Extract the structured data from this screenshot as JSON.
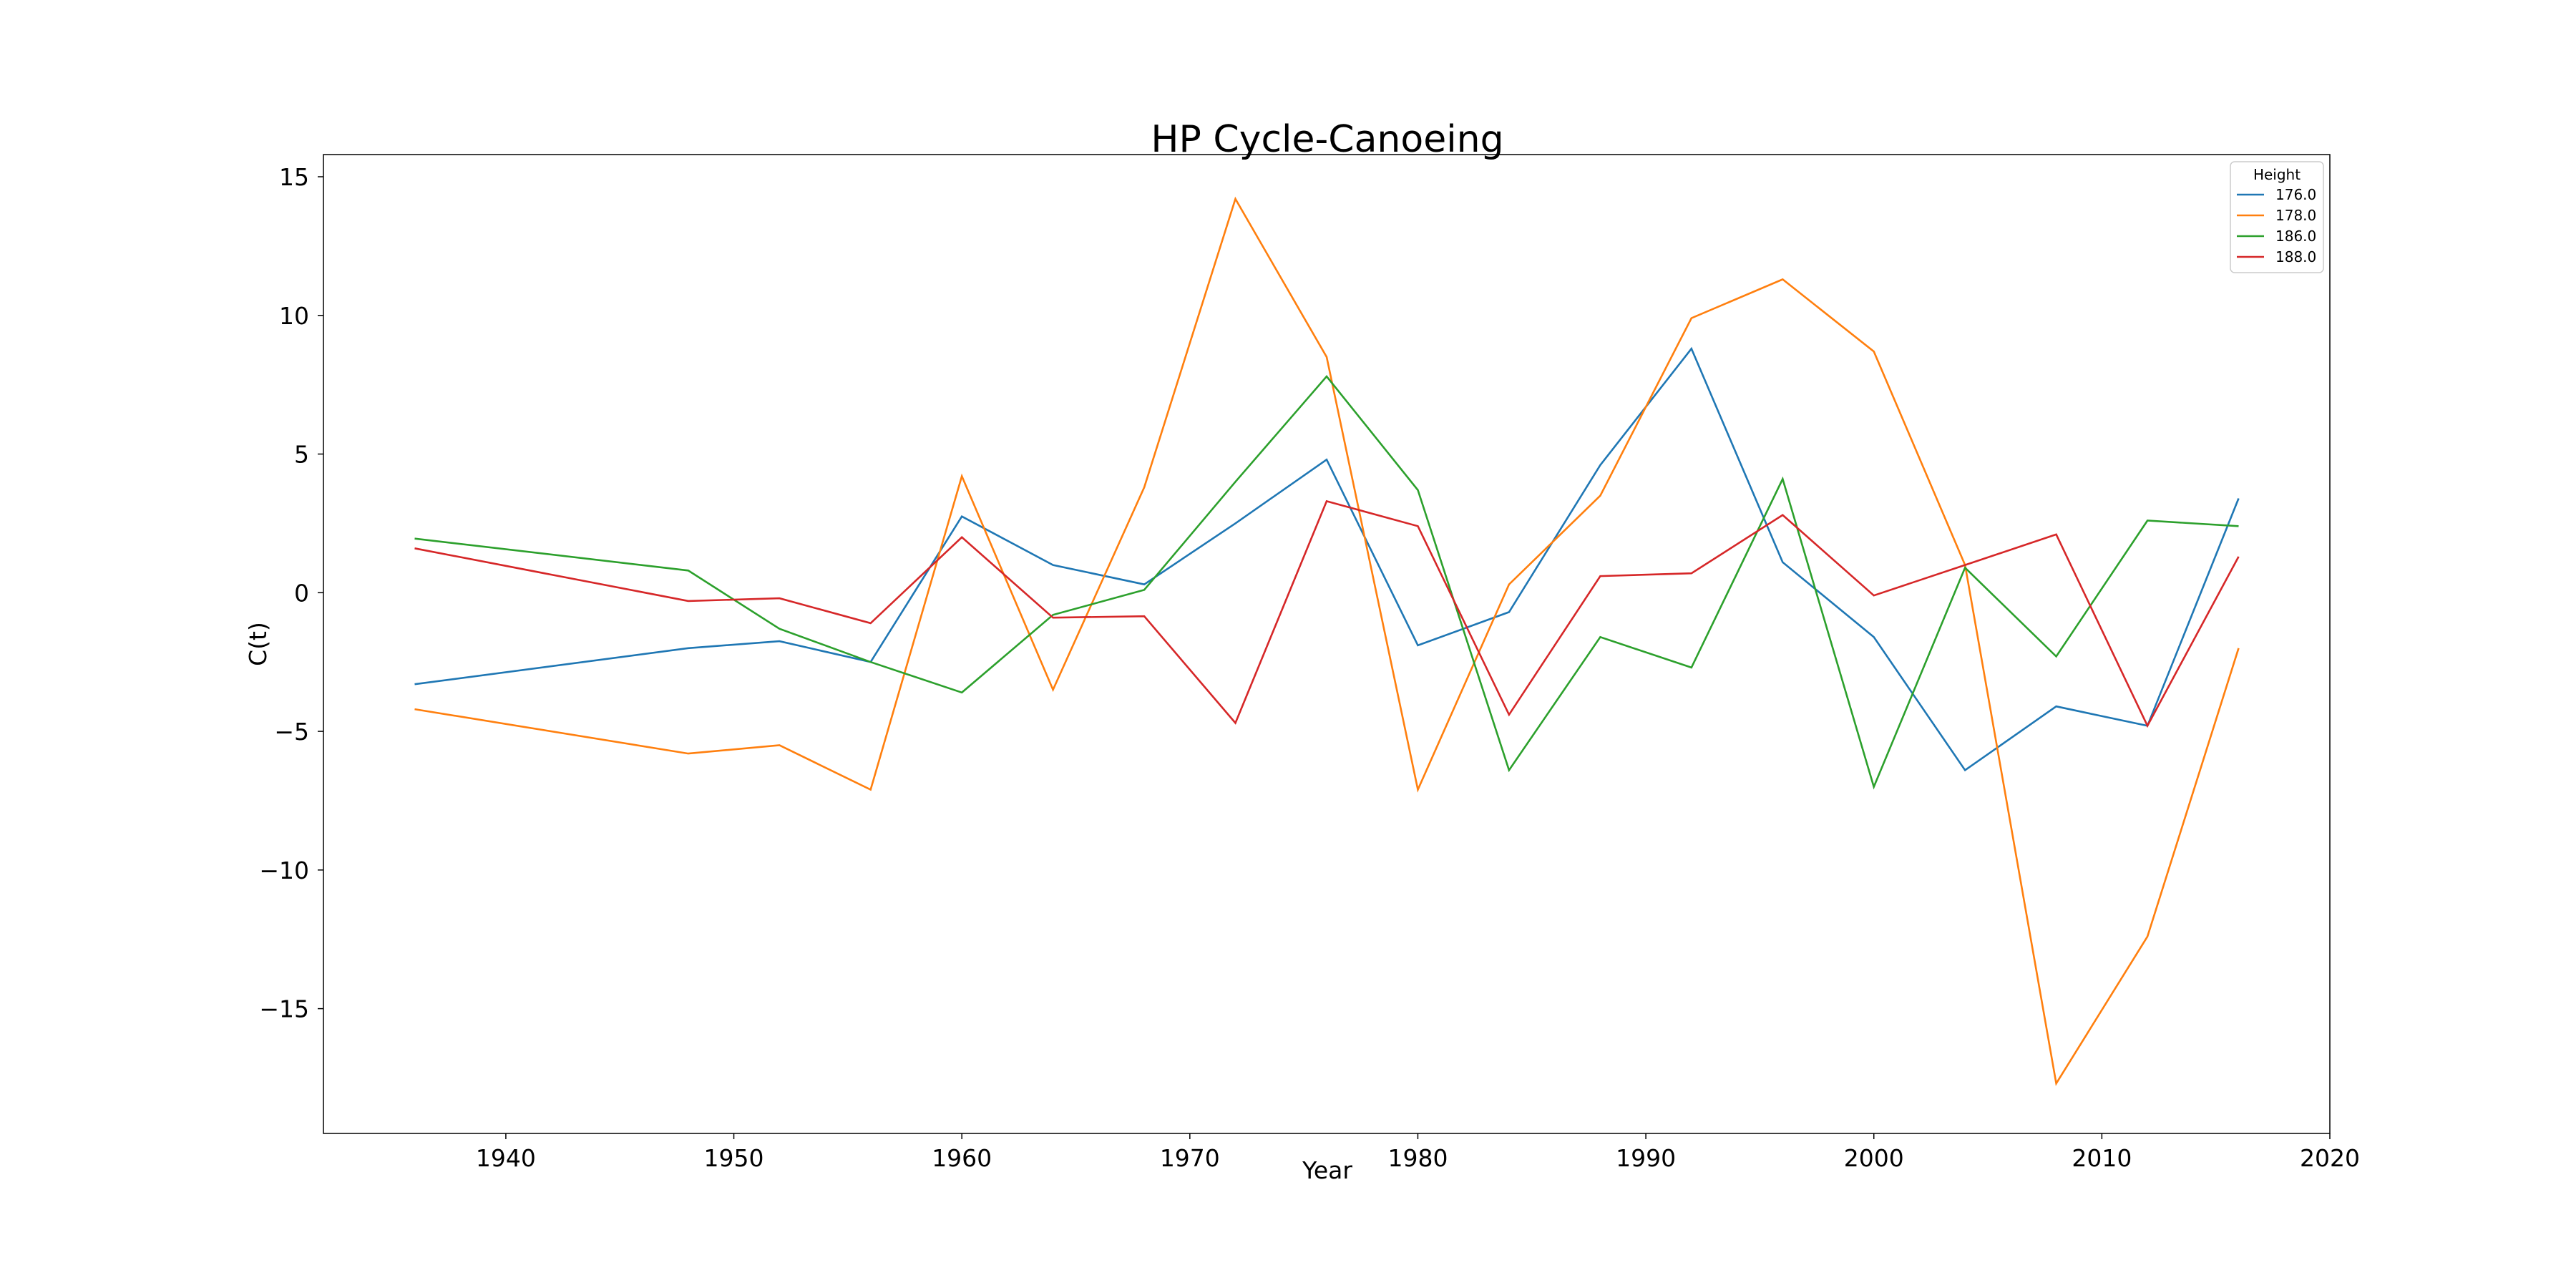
{
  "chart_data": {
    "type": "line",
    "title": "HP Cycle-Canoeing",
    "xlabel": "Year",
    "ylabel": "C(t)",
    "xlim": [
      1932,
      2020
    ],
    "ylim": [
      -19.5,
      15.8
    ],
    "xticks": [
      1940,
      1950,
      1960,
      1970,
      1980,
      1990,
      2000,
      2010,
      2020
    ],
    "yticks": [
      -15,
      -10,
      -5,
      0,
      5,
      10,
      15
    ],
    "grid": false,
    "legend": {
      "title": "Height",
      "position": "top-right"
    },
    "x": [
      1936,
      1948,
      1952,
      1956,
      1960,
      1964,
      1968,
      1972,
      1976,
      1980,
      1984,
      1988,
      1992,
      1996,
      2000,
      2004,
      2008,
      2012,
      2016
    ],
    "series": [
      {
        "name": "176.0",
        "color": "#1f77b4",
        "values": [
          -3.3,
          -2.0,
          -1.75,
          -2.5,
          2.75,
          1.0,
          0.3,
          2.5,
          4.8,
          -1.9,
          -0.7,
          4.6,
          8.8,
          1.1,
          -1.6,
          -6.4,
          -4.1,
          -4.8,
          3.4
        ]
      },
      {
        "name": "178.0",
        "color": "#ff7f0e",
        "values": [
          -4.2,
          -5.8,
          -5.5,
          -7.1,
          4.2,
          -3.5,
          3.8,
          14.2,
          8.5,
          -7.1,
          0.3,
          3.5,
          9.9,
          11.3,
          8.7,
          1.0,
          -17.7,
          -12.4,
          -2.0
        ]
      },
      {
        "name": "186.0",
        "color": "#2ca02c",
        "values": [
          1.95,
          0.8,
          -1.3,
          -2.5,
          -3.6,
          -0.8,
          0.1,
          4.0,
          7.8,
          3.7,
          -6.4,
          -1.6,
          -2.7,
          4.1,
          -7.0,
          0.9,
          -2.3,
          2.6,
          2.4
        ]
      },
      {
        "name": "188.0",
        "color": "#d62728",
        "values": [
          1.6,
          -0.3,
          -0.2,
          -1.1,
          2.0,
          -0.9,
          -0.85,
          -4.7,
          3.3,
          2.4,
          -4.4,
          0.6,
          0.7,
          2.8,
          -0.1,
          1.0,
          2.1,
          -4.8,
          1.3
        ]
      }
    ]
  }
}
